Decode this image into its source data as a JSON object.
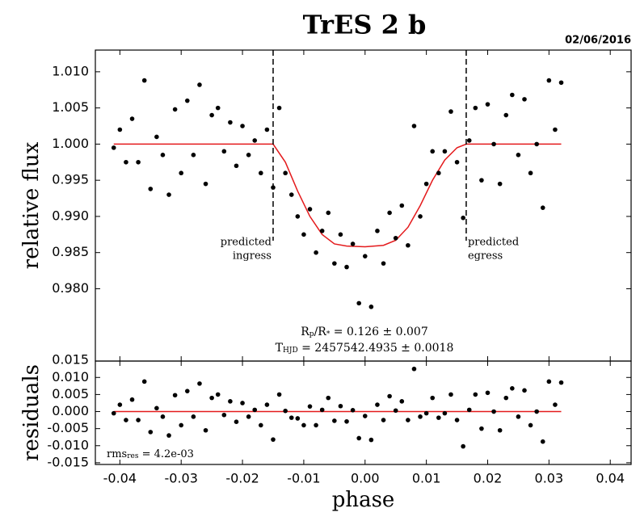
{
  "chart_data": [
    {
      "type": "scatter",
      "title": "TrES 2 b",
      "subtitle": "02/06/2016",
      "ylabel": "relative flux",
      "xlim": [
        -0.044,
        0.0434
      ],
      "ylim": [
        0.97,
        1.013
      ],
      "yticks": [
        {
          "value": 0.98,
          "label": "0.980"
        },
        0.985,
        {
          "value": 0.99,
          "label": "0.990"
        },
        0.995,
        {
          "value": 1.0,
          "label": "1.000"
        },
        1.005,
        {
          "value": 1.01,
          "label": "1.010"
        }
      ],
      "points": {
        "color": "#000000",
        "x": [
          -0.041,
          -0.04,
          -0.039,
          -0.038,
          -0.037,
          -0.036,
          -0.035,
          -0.034,
          -0.033,
          -0.032,
          -0.031,
          -0.03,
          -0.029,
          -0.028,
          -0.027,
          -0.026,
          -0.025,
          -0.024,
          -0.023,
          -0.022,
          -0.021,
          -0.02,
          -0.019,
          -0.018,
          -0.017,
          -0.016,
          -0.015,
          -0.014,
          -0.013,
          -0.012,
          -0.011,
          -0.01,
          -0.009,
          -0.008,
          -0.007,
          -0.006,
          -0.005,
          -0.004,
          -0.003,
          -0.002,
          -0.001,
          0.0,
          0.001,
          0.002,
          0.003,
          0.004,
          0.005,
          0.006,
          0.007,
          0.008,
          0.009,
          0.01,
          0.011,
          0.012,
          0.013,
          0.014,
          0.015,
          0.016,
          0.017,
          0.018,
          0.019,
          0.02,
          0.021,
          0.022,
          0.023,
          0.024,
          0.025,
          0.026,
          0.027,
          0.028,
          0.029,
          0.03,
          0.031,
          0.032
        ],
        "values": [
          0.9995,
          1.002,
          0.9975,
          1.0035,
          0.9975,
          1.0088,
          0.9938,
          1.001,
          0.9985,
          0.993,
          1.0048,
          0.996,
          1.006,
          0.9985,
          1.0082,
          0.9945,
          1.004,
          1.005,
          0.999,
          1.003,
          0.997,
          1.0025,
          0.9985,
          1.0005,
          0.996,
          1.002,
          0.994,
          1.005,
          0.996,
          0.993,
          0.99,
          0.9875,
          0.991,
          0.985,
          0.988,
          0.9905,
          0.9835,
          0.9875,
          0.983,
          0.9862,
          0.978,
          0.9845,
          0.9775,
          0.988,
          0.9835,
          0.9905,
          0.987,
          0.9915,
          0.986,
          1.0025,
          0.99,
          0.9945,
          0.999,
          0.996,
          0.999,
          1.0045,
          0.9975,
          0.9898,
          1.0005,
          1.005,
          0.995,
          1.0055,
          1.0,
          0.9945,
          1.004,
          1.0068,
          0.9985,
          1.0062,
          0.996,
          1.0,
          0.9912,
          1.0088,
          1.002,
          1.0085
        ]
      },
      "model": {
        "color": "#e41a1c",
        "x": [
          -0.041,
          -0.015,
          -0.013,
          -0.011,
          -0.009,
          -0.007,
          -0.005,
          -0.003,
          0.0,
          0.003,
          0.005,
          0.007,
          0.009,
          0.011,
          0.013,
          0.015,
          0.0165,
          0.032
        ],
        "values": [
          1.0,
          1.0,
          0.9975,
          0.9935,
          0.99,
          0.9875,
          0.9862,
          0.9859,
          0.9858,
          0.986,
          0.9867,
          0.9885,
          0.9915,
          0.995,
          0.9978,
          0.9995,
          1.0,
          1.0
        ]
      },
      "vlines": [
        {
          "x": -0.015,
          "lines": [
            "predicted",
            "ingress"
          ],
          "align": "end"
        },
        {
          "x": 0.0165,
          "lines": [
            "predicted",
            "egress"
          ],
          "align": "start"
        }
      ],
      "stats": [
        [
          {
            "t": "R"
          },
          {
            "t": "p",
            "sub": true
          },
          {
            "t": "/R"
          },
          {
            "t": "*",
            "sub": true
          },
          {
            "t": " = 0.126 ± 0.007"
          }
        ],
        [
          {
            "t": "T"
          },
          {
            "t": "HJD",
            "sub": true
          },
          {
            "t": " = 2457542.4935 ± 0.0018"
          }
        ]
      ]
    },
    {
      "type": "scatter",
      "ylabel": "residuals",
      "xlabel": "phase",
      "xlim": [
        -0.044,
        0.0434
      ],
      "ylim": [
        -0.0155,
        0.0148
      ],
      "xticks": [
        -0.04,
        -0.03,
        -0.02,
        -0.01,
        {
          "value": 0.0,
          "label": "0.00"
        },
        0.01,
        0.02,
        0.03,
        0.04
      ],
      "yticks": [
        -0.015,
        {
          "value": -0.01,
          "label": "-0.010"
        },
        -0.005,
        {
          "value": 0.0,
          "label": "0.000"
        },
        0.005,
        {
          "value": 0.01,
          "label": "0.010"
        },
        0.015
      ],
      "points": {
        "color": "#000000",
        "x": [
          -0.041,
          -0.04,
          -0.039,
          -0.038,
          -0.037,
          -0.036,
          -0.035,
          -0.034,
          -0.033,
          -0.032,
          -0.031,
          -0.03,
          -0.029,
          -0.028,
          -0.027,
          -0.026,
          -0.025,
          -0.024,
          -0.023,
          -0.022,
          -0.021,
          -0.02,
          -0.019,
          -0.018,
          -0.017,
          -0.016,
          -0.015,
          -0.014,
          -0.013,
          -0.012,
          -0.011,
          -0.01,
          -0.009,
          -0.008,
          -0.007,
          -0.006,
          -0.005,
          -0.004,
          -0.003,
          -0.002,
          -0.001,
          0.0,
          0.001,
          0.002,
          0.003,
          0.004,
          0.005,
          0.006,
          0.007,
          0.008,
          0.009,
          0.01,
          0.011,
          0.012,
          0.013,
          0.014,
          0.015,
          0.016,
          0.017,
          0.018,
          0.019,
          0.02,
          0.021,
          0.022,
          0.023,
          0.024,
          0.025,
          0.026,
          0.027,
          0.028,
          0.029,
          0.03,
          0.031,
          0.032
        ],
        "values": [
          -0.0005,
          0.002,
          -0.0025,
          0.0035,
          -0.0025,
          0.0088,
          -0.006,
          0.001,
          -0.0015,
          -0.007,
          0.0048,
          -0.004,
          0.006,
          -0.0015,
          0.0082,
          -0.0055,
          0.004,
          0.005,
          -0.001,
          0.003,
          -0.003,
          0.0025,
          -0.0015,
          0.0005,
          -0.004,
          0.002,
          -0.0082,
          0.005,
          0.0002,
          -0.0018,
          -0.002,
          -0.004,
          0.0015,
          -0.004,
          0.0005,
          0.004,
          -0.0027,
          0.0016,
          -0.0029,
          0.0004,
          -0.0078,
          -0.0013,
          -0.0083,
          0.002,
          -0.0025,
          0.0045,
          0.0003,
          0.003,
          -0.0025,
          0.0125,
          -0.0015,
          -0.0005,
          0.004,
          -0.0018,
          -0.0005,
          0.005,
          -0.0025,
          -0.0102,
          0.0005,
          0.005,
          -0.005,
          0.0055,
          0,
          -0.0055,
          0.004,
          0.0068,
          -0.0015,
          0.0062,
          -0.004,
          0,
          -0.0088,
          0.0088,
          0.002,
          0.0085
        ]
      },
      "model": {
        "color": "#e41a1c",
        "x": [
          -0.041,
          0.032
        ],
        "values": [
          0.0,
          0.0
        ]
      },
      "stats": [
        [
          {
            "t": "rms"
          },
          {
            "t": "res",
            "sub": true
          },
          {
            "t": " = 4.2e-03"
          }
        ]
      ]
    }
  ]
}
